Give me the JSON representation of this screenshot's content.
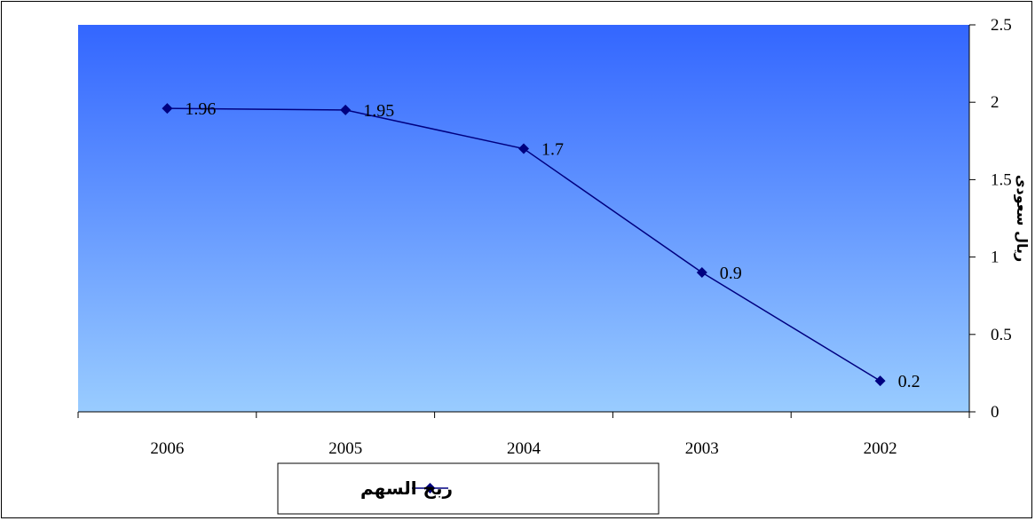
{
  "chart_data": {
    "type": "line",
    "categories": [
      "2006",
      "2005",
      "2004",
      "2003",
      "2002"
    ],
    "series": [
      {
        "name": "ربح السهم",
        "values": [
          1.96,
          1.95,
          1.7,
          0.9,
          0.2
        ],
        "color": "#000080"
      }
    ],
    "data_labels": [
      "1.96",
      "1.95",
      "1.7",
      "0.9",
      "0.2"
    ],
    "ylabel": "ريال سعودى",
    "ylim": [
      0,
      2.5
    ],
    "yticks": [
      0,
      0.5,
      1,
      1.5,
      2,
      2.5
    ],
    "ytick_labels": [
      "0",
      "0.5",
      "1",
      "1.5",
      "2",
      "2.5"
    ],
    "y_axis_side": "right",
    "legend_position": "bottom-center",
    "plot_background": {
      "top": "#3366ff",
      "bottom": "#99ccff"
    },
    "grid": false
  }
}
